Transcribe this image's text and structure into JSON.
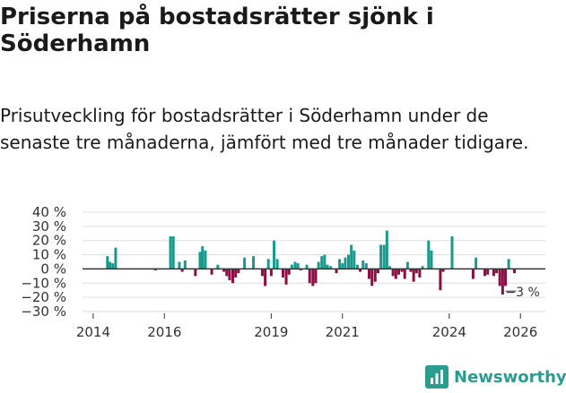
{
  "title": "Priserna på bostadsrätter sjönk i Söderhamn",
  "subtitle": "Prisutveckling för bostadsrätter i Söderhamn under de senaste tre månaderna, jämfört med tre månader tidigare.",
  "brand": {
    "name": "Newsworthy",
    "logo_icon": "bar-chart-logo-icon"
  },
  "colors": {
    "positive": "#1a9a8c",
    "negative": "#8b0f43",
    "grid": "#dddddd",
    "zero_line": "#333333",
    "text": "#333333",
    "brand": "#2a9d8f"
  },
  "chart_data": {
    "type": "bar",
    "title": "Priserna på bostadsrätter sjönk i Söderhamn",
    "xlabel": "",
    "ylabel": "",
    "ylim": [
      -30,
      40
    ],
    "yticks": [
      -30,
      -20,
      -10,
      0,
      10,
      20,
      30,
      40
    ],
    "ytick_labels": [
      "−30 %",
      "−20 %",
      "−10 %",
      "0 %",
      "10 %",
      "20 %",
      "30 %",
      "40 %"
    ],
    "xticks": [
      2014,
      2016,
      2019,
      2021,
      2024,
      2026
    ],
    "xtick_labels": [
      "2014",
      "2016",
      "2019",
      "2021",
      "2024",
      "2026"
    ],
    "xlim": [
      2013.7,
      2026.7
    ],
    "grid": true,
    "last_value_label": "−3 %",
    "series": [
      {
        "name": "Prisutveckling",
        "x": [
          2014.4,
          2014.47,
          2014.55,
          2014.63,
          2015.75,
          2016.17,
          2016.25,
          2016.42,
          2016.5,
          2016.58,
          2016.87,
          2017.0,
          2017.07,
          2017.15,
          2017.33,
          2017.5,
          2017.67,
          2017.75,
          2017.83,
          2017.92,
          2018.0,
          2018.08,
          2018.25,
          2018.5,
          2018.75,
          2018.83,
          2018.92,
          2019.0,
          2019.08,
          2019.17,
          2019.33,
          2019.42,
          2019.5,
          2019.58,
          2019.67,
          2019.75,
          2019.83,
          2020.0,
          2020.08,
          2020.17,
          2020.25,
          2020.33,
          2020.42,
          2020.5,
          2020.58,
          2020.67,
          2020.83,
          2020.92,
          2021.0,
          2021.08,
          2021.17,
          2021.25,
          2021.33,
          2021.42,
          2021.5,
          2021.58,
          2021.67,
          2021.75,
          2021.83,
          2021.92,
          2022.0,
          2022.08,
          2022.17,
          2022.25,
          2022.33,
          2022.42,
          2022.5,
          2022.58,
          2022.67,
          2022.75,
          2022.83,
          2022.92,
          2023.0,
          2023.08,
          2023.17,
          2023.25,
          2023.42,
          2023.5,
          2023.75,
          2023.83,
          2023.92,
          2024.0,
          2024.08,
          2024.67,
          2024.75,
          2025.0,
          2025.08,
          2025.25,
          2025.33,
          2025.42,
          2025.5,
          2025.58,
          2025.67,
          2025.83
        ],
        "values": [
          9,
          5,
          4,
          15,
          -1,
          23,
          23,
          5,
          -2,
          6,
          -5,
          12,
          16,
          13,
          -4,
          3,
          -2,
          -5,
          -8,
          -10,
          -6,
          -3,
          8,
          9,
          -5,
          -12,
          7,
          -5,
          20,
          7,
          -6,
          -11,
          -4,
          3,
          5,
          4,
          -1,
          3,
          -10,
          -12,
          -10,
          5,
          9,
          10,
          3,
          2,
          -3,
          7,
          4,
          8,
          10,
          17,
          13,
          3,
          -2,
          6,
          4,
          -7,
          -12,
          -9,
          -3,
          17,
          17,
          27,
          2,
          -5,
          -7,
          -4,
          -2,
          -7,
          5,
          -2,
          -9,
          -3,
          -6,
          2,
          20,
          13,
          -15,
          -2,
          0,
          0,
          23,
          -7,
          8,
          -5,
          -4,
          -5,
          -3,
          -12,
          -18,
          -12,
          7,
          -3
        ]
      }
    ]
  }
}
